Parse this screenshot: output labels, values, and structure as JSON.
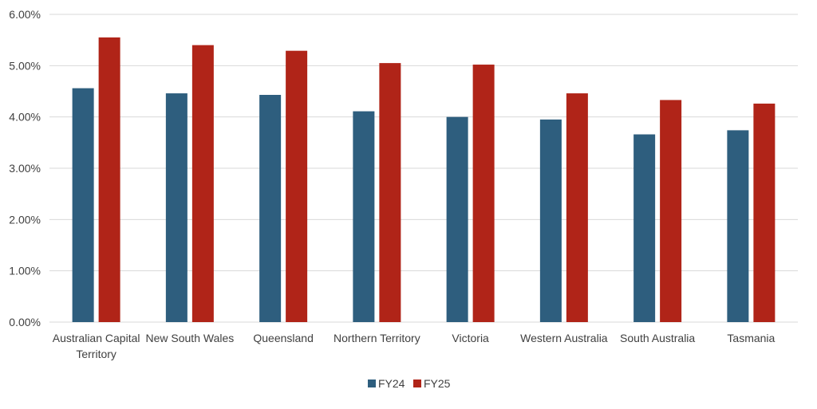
{
  "chart_data": {
    "type": "bar",
    "categories": [
      [
        "Australian Capital",
        "Territory"
      ],
      [
        "New South Wales"
      ],
      [
        "Queensland"
      ],
      [
        "Northern Territory"
      ],
      [
        "Victoria"
      ],
      [
        "Western Australia"
      ],
      [
        "South Australia"
      ],
      [
        "Tasmania"
      ]
    ],
    "series": [
      {
        "name": "FY24",
        "color": "#2E5E7E",
        "values": [
          4.56,
          4.46,
          4.43,
          4.11,
          4.0,
          3.95,
          3.66,
          3.74
        ]
      },
      {
        "name": "FY25",
        "color": "#B02418",
        "values": [
          5.55,
          5.4,
          5.29,
          5.05,
          5.02,
          4.46,
          4.33,
          4.26
        ]
      }
    ],
    "y_ticks": [
      "0.00%",
      "1.00%",
      "2.00%",
      "3.00%",
      "4.00%",
      "5.00%",
      "6.00%"
    ],
    "ylim": [
      0,
      6
    ],
    "grid": true,
    "legend_position": "bottom-center"
  }
}
